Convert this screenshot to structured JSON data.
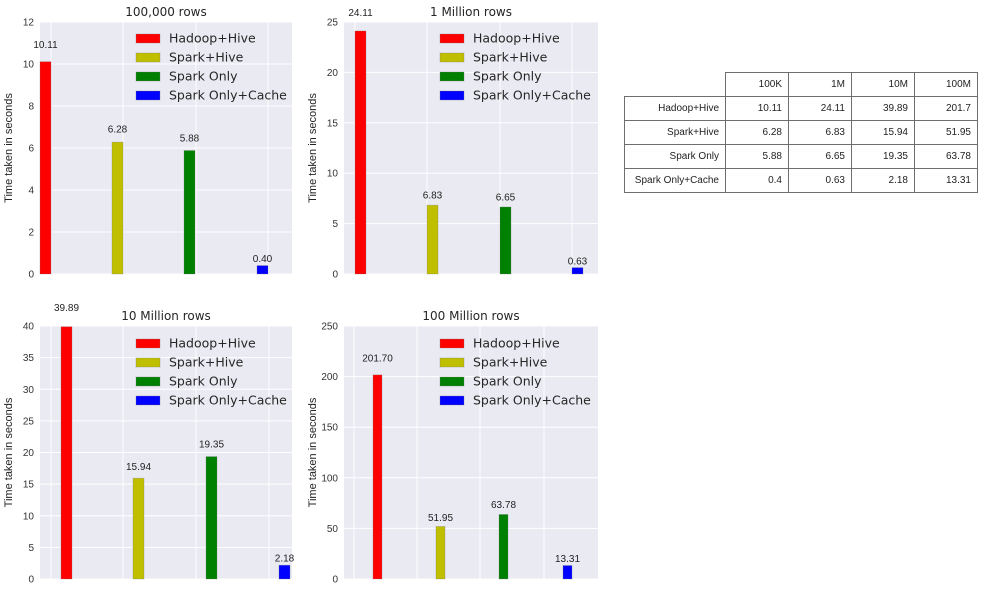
{
  "colors": {
    "background": "#eaeaf2",
    "grid": "#ffffff",
    "series": [
      "#ff0000",
      "#bfbf00",
      "#008000",
      "#0000ff"
    ]
  },
  "chart_data": [
    {
      "type": "bar",
      "title": "100,000 rows",
      "ylabel": "Time taken in seconds",
      "xlabel": "",
      "ylim": [
        0,
        12
      ],
      "yticks": [
        "0",
        "2",
        "4",
        "6",
        "8",
        "10",
        "12"
      ],
      "legend": [
        "Hadoop+Hive",
        "Spark+Hive",
        "Spark Only",
        "Spark Only+Cache"
      ],
      "legend_position": "top-right",
      "grid": true,
      "series": [
        {
          "name": "Hadoop+Hive",
          "value": 10.11,
          "label": "10.11"
        },
        {
          "name": "Spark+Hive",
          "value": 6.28,
          "label": "6.28"
        },
        {
          "name": "Spark Only",
          "value": 5.88,
          "label": "5.88"
        },
        {
          "name": "Spark Only+Cache",
          "value": 0.4,
          "label": "0.40"
        }
      ]
    },
    {
      "type": "bar",
      "title": "1 Million rows",
      "ylabel": "Time taken in seconds",
      "xlabel": "",
      "ylim": [
        0,
        25
      ],
      "yticks": [
        "0",
        "5",
        "10",
        "15",
        "20",
        "25"
      ],
      "legend": [
        "Hadoop+Hive",
        "Spark+Hive",
        "Spark Only",
        "Spark Only+Cache"
      ],
      "legend_position": "top-right",
      "grid": true,
      "series": [
        {
          "name": "Hadoop+Hive",
          "value": 24.11,
          "label": "24.11"
        },
        {
          "name": "Spark+Hive",
          "value": 6.83,
          "label": "6.83"
        },
        {
          "name": "Spark Only",
          "value": 6.65,
          "label": "6.65"
        },
        {
          "name": "Spark Only+Cache",
          "value": 0.63,
          "label": "0.63"
        }
      ]
    },
    {
      "type": "bar",
      "title": "10 Million rows",
      "ylabel": "Time taken in seconds",
      "xlabel": "",
      "ylim": [
        0,
        40
      ],
      "yticks": [
        "0",
        "5",
        "10",
        "15",
        "20",
        "25",
        "30",
        "35",
        "40"
      ],
      "legend": [
        "Hadoop+Hive",
        "Spark+Hive",
        "Spark Only",
        "Spark Only+Cache"
      ],
      "legend_position": "top-right",
      "grid": true,
      "series": [
        {
          "name": "Hadoop+Hive",
          "value": 39.89,
          "label": "39.89"
        },
        {
          "name": "Spark+Hive",
          "value": 15.94,
          "label": "15.94"
        },
        {
          "name": "Spark Only",
          "value": 19.35,
          "label": "19.35"
        },
        {
          "name": "Spark Only+Cache",
          "value": 2.18,
          "label": "2.18"
        }
      ]
    },
    {
      "type": "bar",
      "title": "100 Million rows",
      "ylabel": "Time taken in seconds",
      "xlabel": "",
      "ylim": [
        0,
        250
      ],
      "yticks": [
        "0",
        "50",
        "100",
        "150",
        "200",
        "250"
      ],
      "legend": [
        "Hadoop+Hive",
        "Spark+Hive",
        "Spark Only",
        "Spark Only+Cache"
      ],
      "legend_position": "top-right",
      "grid": true,
      "series": [
        {
          "name": "Hadoop+Hive",
          "value": 201.7,
          "label": "201.70"
        },
        {
          "name": "Spark+Hive",
          "value": 51.95,
          "label": "51.95"
        },
        {
          "name": "Spark Only",
          "value": 63.78,
          "label": "63.78"
        },
        {
          "name": "Spark Only+Cache",
          "value": 13.31,
          "label": "13.31"
        }
      ]
    },
    {
      "type": "table",
      "columns": [
        "100K",
        "1M",
        "10M",
        "100M"
      ],
      "rows": [
        {
          "label": "Hadoop+Hive",
          "cells": [
            "10.11",
            "24.11",
            "39.89",
            "201.7"
          ]
        },
        {
          "label": "Spark+Hive",
          "cells": [
            "6.28",
            "6.83",
            "15.94",
            "51.95"
          ]
        },
        {
          "label": "Spark Only",
          "cells": [
            "5.88",
            "6.65",
            "19.35",
            "63.78"
          ]
        },
        {
          "label": "Spark Only+Cache",
          "cells": [
            "0.4",
            "0.63",
            "2.18",
            "13.31"
          ]
        }
      ]
    }
  ]
}
